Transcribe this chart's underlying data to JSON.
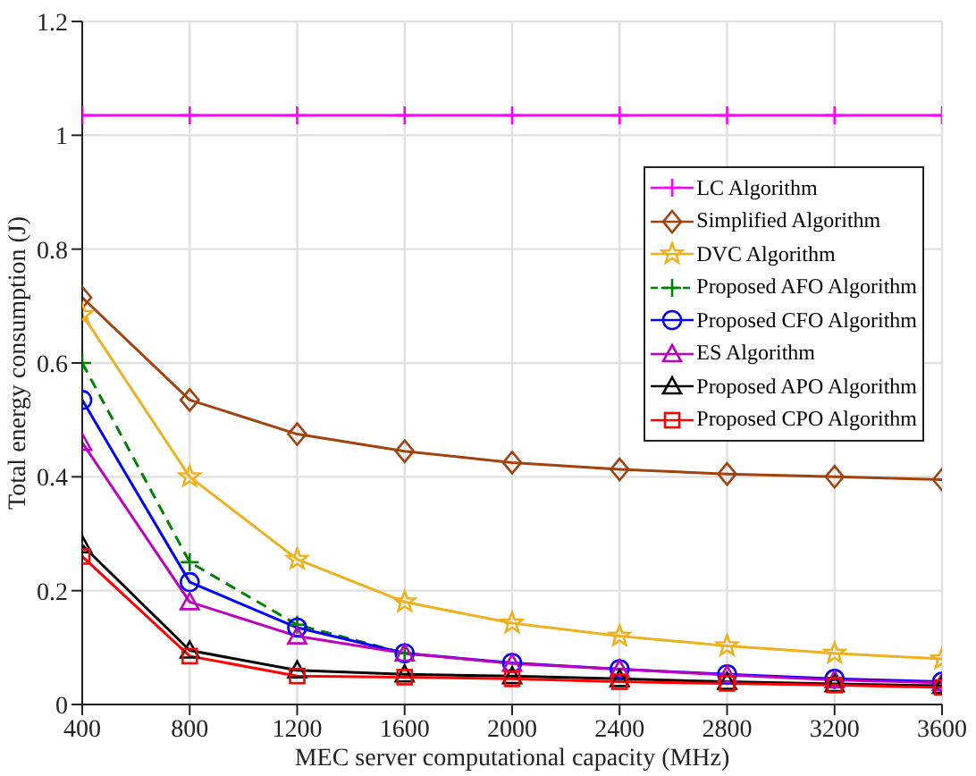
{
  "chart_data": {
    "type": "line",
    "xlabel": "MEC server computational capacity (MHz)",
    "ylabel": "Total energy consumption (J)",
    "x": [
      400,
      800,
      1200,
      1600,
      2000,
      2400,
      2800,
      3200,
      3600
    ],
    "xlim": [
      400,
      3600
    ],
    "xticks": [
      400,
      800,
      1200,
      1600,
      2000,
      2400,
      2800,
      3200,
      3600
    ],
    "ylim": [
      0,
      1.2
    ],
    "yticks": [
      0,
      0.2,
      0.4,
      0.6,
      0.8,
      1,
      1.2
    ],
    "grid": true,
    "legend": "top right",
    "series": [
      {
        "name": "LC Algorithm",
        "color": "#ff00ff",
        "marker": "cross",
        "line_style": "solid",
        "values": [
          1.035,
          1.035,
          1.035,
          1.035,
          1.035,
          1.035,
          1.035,
          1.035,
          1.035
        ]
      },
      {
        "name": "Simplified Algorithm",
        "color": "#a2420e",
        "marker": "diamond",
        "line_style": "solid",
        "values": [
          0.715,
          0.535,
          0.475,
          0.445,
          0.425,
          0.413,
          0.405,
          0.4,
          0.395
        ]
      },
      {
        "name": "DVC Algorithm",
        "color": "#edb120",
        "marker": "star",
        "line_style": "solid",
        "values": [
          0.685,
          0.4,
          0.255,
          0.18,
          0.143,
          0.12,
          0.103,
          0.09,
          0.08
        ]
      },
      {
        "name": "Proposed AFO Algorithm",
        "color": "#008000",
        "marker": "cross",
        "line_style": "dashed",
        "values": [
          0.6,
          0.25,
          0.14,
          0.09,
          null,
          null,
          null,
          null,
          null
        ]
      },
      {
        "name": "Proposed CFO Algorithm",
        "color": "#0000ff",
        "marker": "circle",
        "line_style": "solid",
        "values": [
          0.535,
          0.215,
          0.135,
          0.09,
          0.073,
          0.062,
          0.053,
          0.045,
          0.04
        ]
      },
      {
        "name": "ES Algorithm",
        "color": "#bf00bf",
        "marker": "triangle",
        "line_style": "solid",
        "values": [
          0.46,
          0.18,
          0.12,
          0.09,
          0.072,
          0.062,
          0.052,
          0.043,
          0.038
        ]
      },
      {
        "name": "Proposed APO Algorithm",
        "color": "#000000",
        "marker": "triangle",
        "line_style": "solid",
        "values": [
          0.28,
          0.095,
          0.06,
          0.053,
          0.05,
          0.045,
          0.04,
          0.036,
          0.033
        ]
      },
      {
        "name": "Proposed CPO Algorithm",
        "color": "#ff0000",
        "marker": "square",
        "line_style": "solid",
        "values": [
          0.26,
          0.085,
          0.05,
          0.048,
          0.045,
          0.04,
          0.037,
          0.034,
          0.03
        ]
      }
    ]
  }
}
